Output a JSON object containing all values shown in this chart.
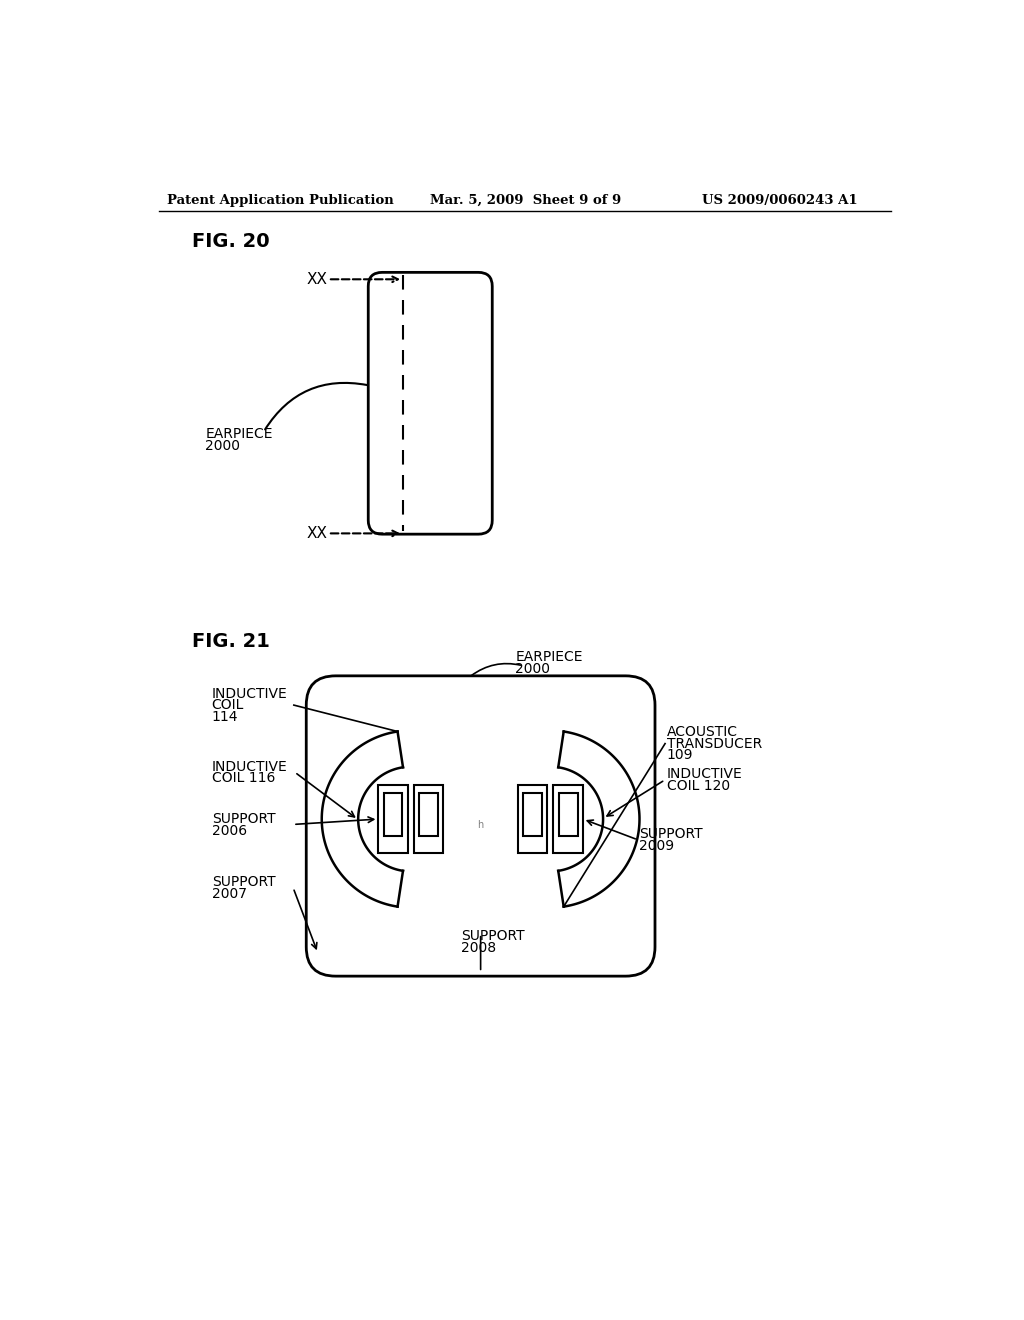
{
  "bg_color": "#ffffff",
  "header_left": "Patent Application Publication",
  "header_mid": "Mar. 5, 2009  Sheet 9 of 9",
  "header_right": "US 2009/0060243 A1",
  "fig20_label": "FIG. 20",
  "fig21_label": "FIG. 21",
  "text_color": "#000000",
  "line_color": "#000000"
}
